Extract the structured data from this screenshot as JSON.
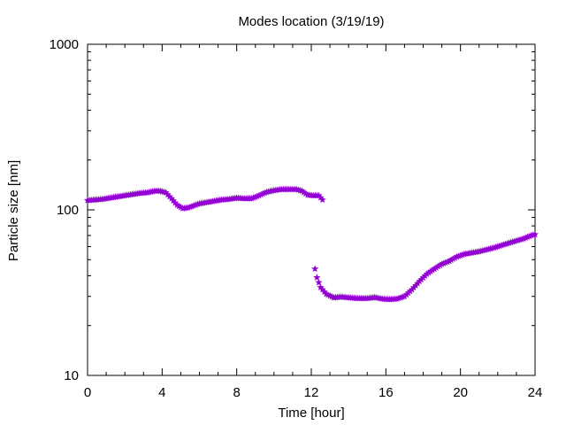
{
  "chart_data": {
    "type": "scatter",
    "title": "Modes location (3/19/19)",
    "xlabel": "Time [hour]",
    "ylabel": "Particle size [nm]",
    "xlim": [
      0,
      24
    ],
    "ylim": [
      10,
      1000
    ],
    "yscale": "log",
    "grid": false,
    "legend": "none",
    "x_ticks": [
      0,
      4,
      8,
      12,
      16,
      20,
      24
    ],
    "x_tick_labels": [
      "0",
      "4",
      "8",
      "12",
      "16",
      "20",
      "24"
    ],
    "y_ticks": [
      10,
      100,
      1000
    ],
    "y_tick_labels": [
      "10",
      "100",
      "1000"
    ],
    "marker": "star",
    "color": "#9400d3",
    "series": [
      {
        "x": [
          0.0,
          0.4,
          0.8,
          1.2,
          1.6,
          2.0,
          2.4,
          2.8,
          3.2,
          3.6,
          3.9,
          4.2,
          4.5,
          4.8,
          5.1,
          5.4,
          5.7,
          6.0,
          6.4,
          6.8,
          7.2,
          7.6,
          8.0,
          8.4,
          8.8,
          9.2,
          9.6,
          10.0,
          10.4,
          10.8,
          11.2,
          11.5,
          11.8,
          12.1,
          12.4,
          12.6
        ],
        "y": [
          114,
          115,
          116,
          118,
          120,
          122,
          124,
          126,
          127,
          130,
          130,
          127,
          117,
          107,
          102,
          103,
          106,
          109,
          111,
          113,
          115,
          116,
          118,
          117,
          117,
          122,
          128,
          131,
          133,
          133,
          133,
          130,
          123,
          122,
          122,
          115
        ]
      },
      {
        "x": [
          12.2,
          12.3,
          12.5,
          12.8,
          13.2,
          13.6,
          14.0,
          14.5,
          15.0,
          15.4,
          15.8,
          16.2,
          16.6,
          17.0,
          17.4,
          17.8,
          18.2,
          18.6,
          19.0,
          19.4,
          19.8,
          20.2,
          20.6,
          21.0,
          21.4,
          21.8,
          22.2,
          22.6,
          23.0,
          23.4,
          23.8,
          24.0
        ],
        "y": [
          44,
          39,
          34,
          31,
          29.5,
          29.8,
          29.5,
          29.2,
          29.2,
          29.6,
          29.0,
          28.8,
          29.0,
          30.0,
          33.0,
          37.0,
          41.0,
          44.0,
          47.0,
          49.0,
          52.0,
          54.0,
          55.0,
          56.0,
          57.5,
          59.0,
          61.0,
          63.0,
          65.0,
          67.0,
          70.0,
          71.0
        ]
      }
    ]
  }
}
